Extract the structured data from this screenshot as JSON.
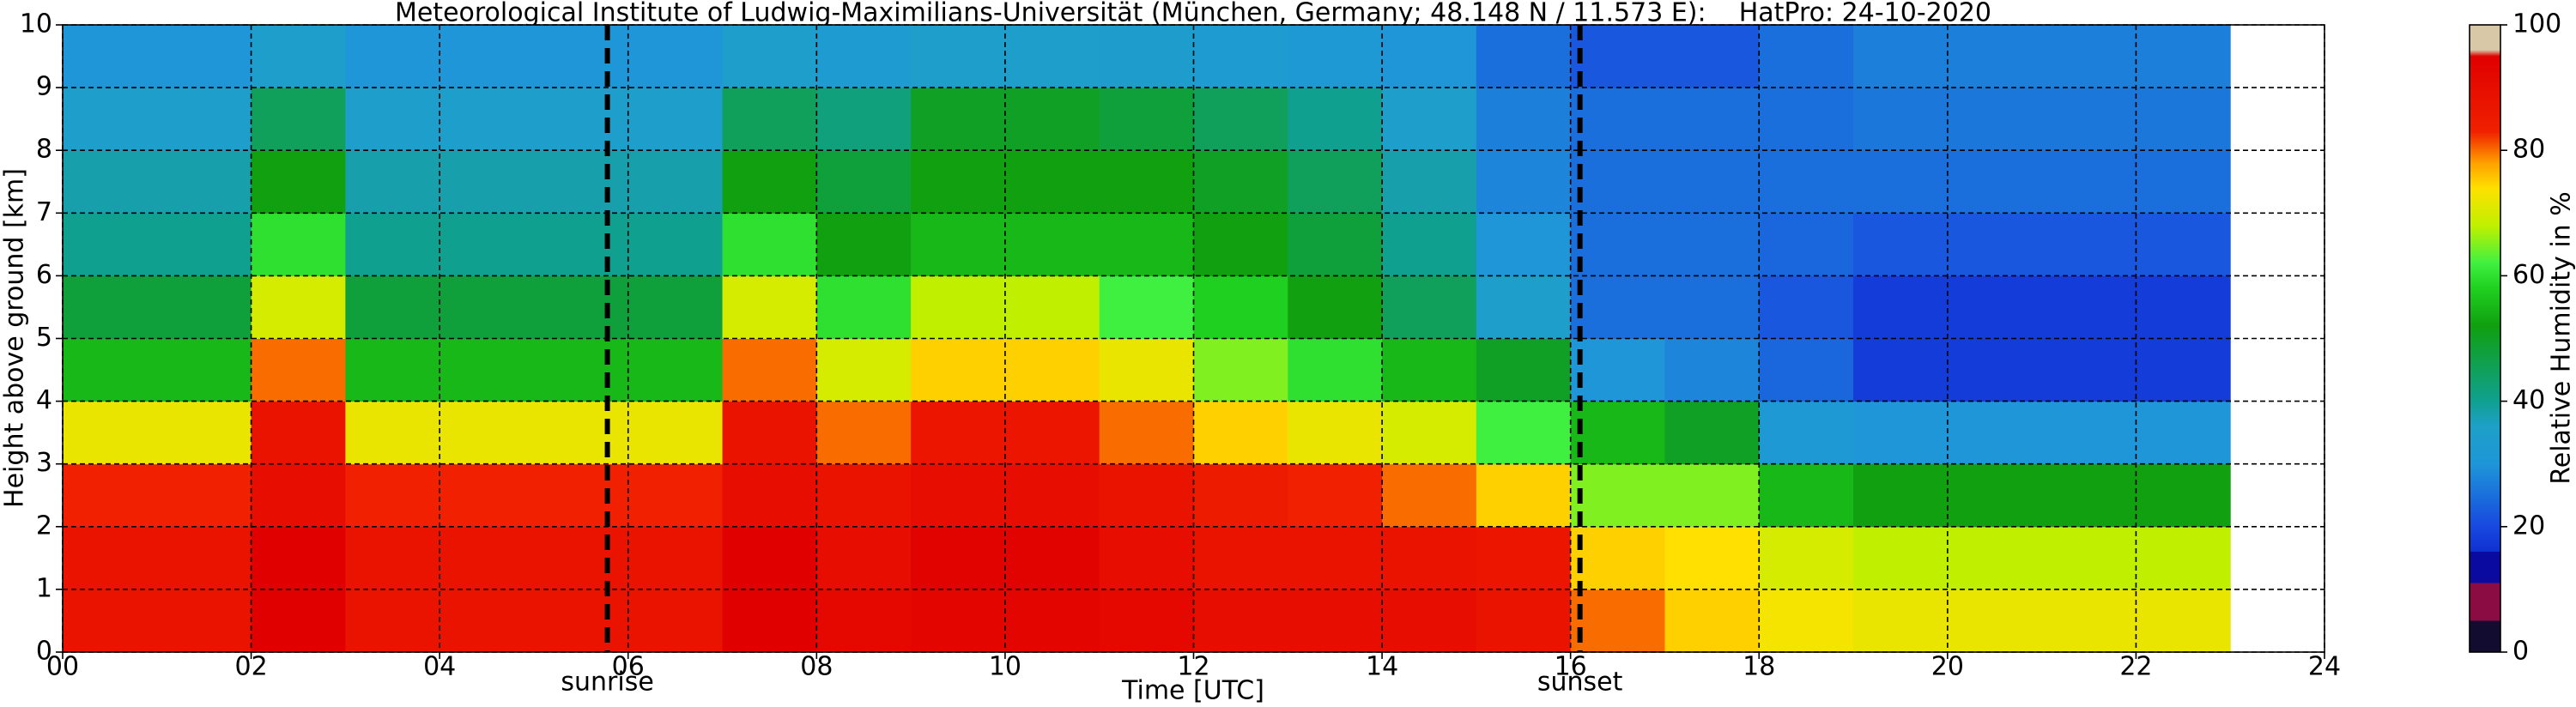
{
  "chart_data": {
    "type": "heatmap",
    "title": "Meteorological Institute of Ludwig-Maximilians-Universität (München, Germany; 48.148 N / 11.573 E):    HatPro: 24-10-2020",
    "xlabel": "Time [UTC]",
    "ylabel": "Height above ground [km]",
    "colorbar_label": "Relative Humidity in %",
    "x_bins": [
      0,
      1,
      2,
      3,
      4,
      5,
      6,
      7,
      8,
      9,
      10,
      11,
      12,
      13,
      14,
      15,
      16,
      17,
      18,
      19,
      20,
      21,
      22,
      23
    ],
    "y_bins": [
      0,
      1,
      2,
      3,
      4,
      5,
      6,
      7,
      8,
      9,
      10
    ],
    "z": [
      [
        88,
        88,
        95,
        88,
        88,
        88,
        88,
        95,
        92,
        93,
        93,
        92,
        90,
        90,
        90,
        88,
        80,
        75,
        73,
        72,
        72,
        72,
        72
      ],
      [
        88,
        88,
        95,
        88,
        88,
        88,
        88,
        95,
        90,
        94,
        94,
        90,
        88,
        88,
        88,
        87,
        75,
        74,
        70,
        68,
        68,
        68,
        68
      ],
      [
        83,
        83,
        90,
        83,
        83,
        83,
        83,
        90,
        88,
        90,
        90,
        88,
        85,
        83,
        80,
        75,
        65,
        65,
        55,
        52,
        52,
        52,
        52
      ],
      [
        72,
        72,
        88,
        72,
        72,
        72,
        72,
        88,
        80,
        87,
        87,
        80,
        75,
        72,
        70,
        62,
        55,
        50,
        32,
        30,
        30,
        30,
        30
      ],
      [
        55,
        55,
        80,
        55,
        55,
        55,
        55,
        80,
        70,
        75,
        75,
        72,
        65,
        60,
        55,
        50,
        30,
        28,
        24,
        18,
        18,
        18,
        18
      ],
      [
        48,
        48,
        70,
        48,
        48,
        48,
        48,
        70,
        60,
        68,
        68,
        62,
        58,
        52,
        45,
        35,
        25,
        25,
        22,
        18,
        18,
        18,
        18
      ],
      [
        40,
        40,
        60,
        40,
        40,
        40,
        40,
        60,
        52,
        55,
        55,
        55,
        52,
        48,
        40,
        30,
        25,
        25,
        24,
        22,
        22,
        22,
        22
      ],
      [
        38,
        38,
        52,
        38,
        38,
        38,
        38,
        52,
        48,
        52,
        52,
        52,
        50,
        45,
        38,
        28,
        25,
        25,
        25,
        25,
        25,
        25,
        25
      ],
      [
        35,
        35,
        45,
        35,
        35,
        35,
        35,
        45,
        42,
        50,
        50,
        48,
        45,
        40,
        35,
        27,
        25,
        25,
        25,
        26,
        26,
        26,
        26
      ],
      [
        30,
        30,
        35,
        30,
        30,
        30,
        30,
        35,
        33,
        35,
        35,
        34,
        33,
        32,
        30,
        25,
        22,
        22,
        25,
        27,
        27,
        27,
        27
      ]
    ],
    "xlim": [
      0,
      24
    ],
    "xticks": [
      {
        "value": 0,
        "label": "00"
      },
      {
        "value": 2,
        "label": "02"
      },
      {
        "value": 4,
        "label": "04"
      },
      {
        "value": 6,
        "label": "06"
      },
      {
        "value": 8,
        "label": "08"
      },
      10,
      12,
      14,
      16,
      18,
      20,
      22,
      24
    ],
    "ylim": [
      0,
      10
    ],
    "yticks": [
      0,
      1,
      2,
      3,
      4,
      5,
      6,
      7,
      8,
      9,
      10
    ],
    "clim": [
      0,
      100
    ],
    "cticks": [
      0,
      20,
      40,
      60,
      80,
      100
    ],
    "grid": true,
    "annotations": [
      {
        "text": "sunrise",
        "x": 5.78
      },
      {
        "text": "sunset",
        "x": 16.1
      }
    ],
    "colormap": [
      {
        "value": 0,
        "color": "#120c30"
      },
      {
        "value": 5,
        "color": "#120c30"
      },
      {
        "value": 5,
        "color": "#8a0c42"
      },
      {
        "value": 11,
        "color": "#8a0c42"
      },
      {
        "value": 11,
        "color": "#0a0aa0"
      },
      {
        "value": 16,
        "color": "#0a0aa0"
      },
      {
        "value": 16,
        "color": "#1030d0"
      },
      {
        "value": 20,
        "color": "#1848e0"
      },
      {
        "value": 30,
        "color": "#1e96d8"
      },
      {
        "value": 36,
        "color": "#1ea0c8"
      },
      {
        "value": 40,
        "color": "#10a090"
      },
      {
        "value": 46,
        "color": "#10a050"
      },
      {
        "value": 52,
        "color": "#10a010"
      },
      {
        "value": 58,
        "color": "#20d020"
      },
      {
        "value": 62,
        "color": "#40f040"
      },
      {
        "value": 68,
        "color": "#c0f000"
      },
      {
        "value": 74,
        "color": "#ffe000"
      },
      {
        "value": 78,
        "color": "#ffa000"
      },
      {
        "value": 83,
        "color": "#f02000"
      },
      {
        "value": 95,
        "color": "#e00000"
      },
      {
        "value": 96,
        "color": "#d8c8a8"
      },
      {
        "value": 100,
        "color": "#d8c8a8"
      }
    ]
  }
}
